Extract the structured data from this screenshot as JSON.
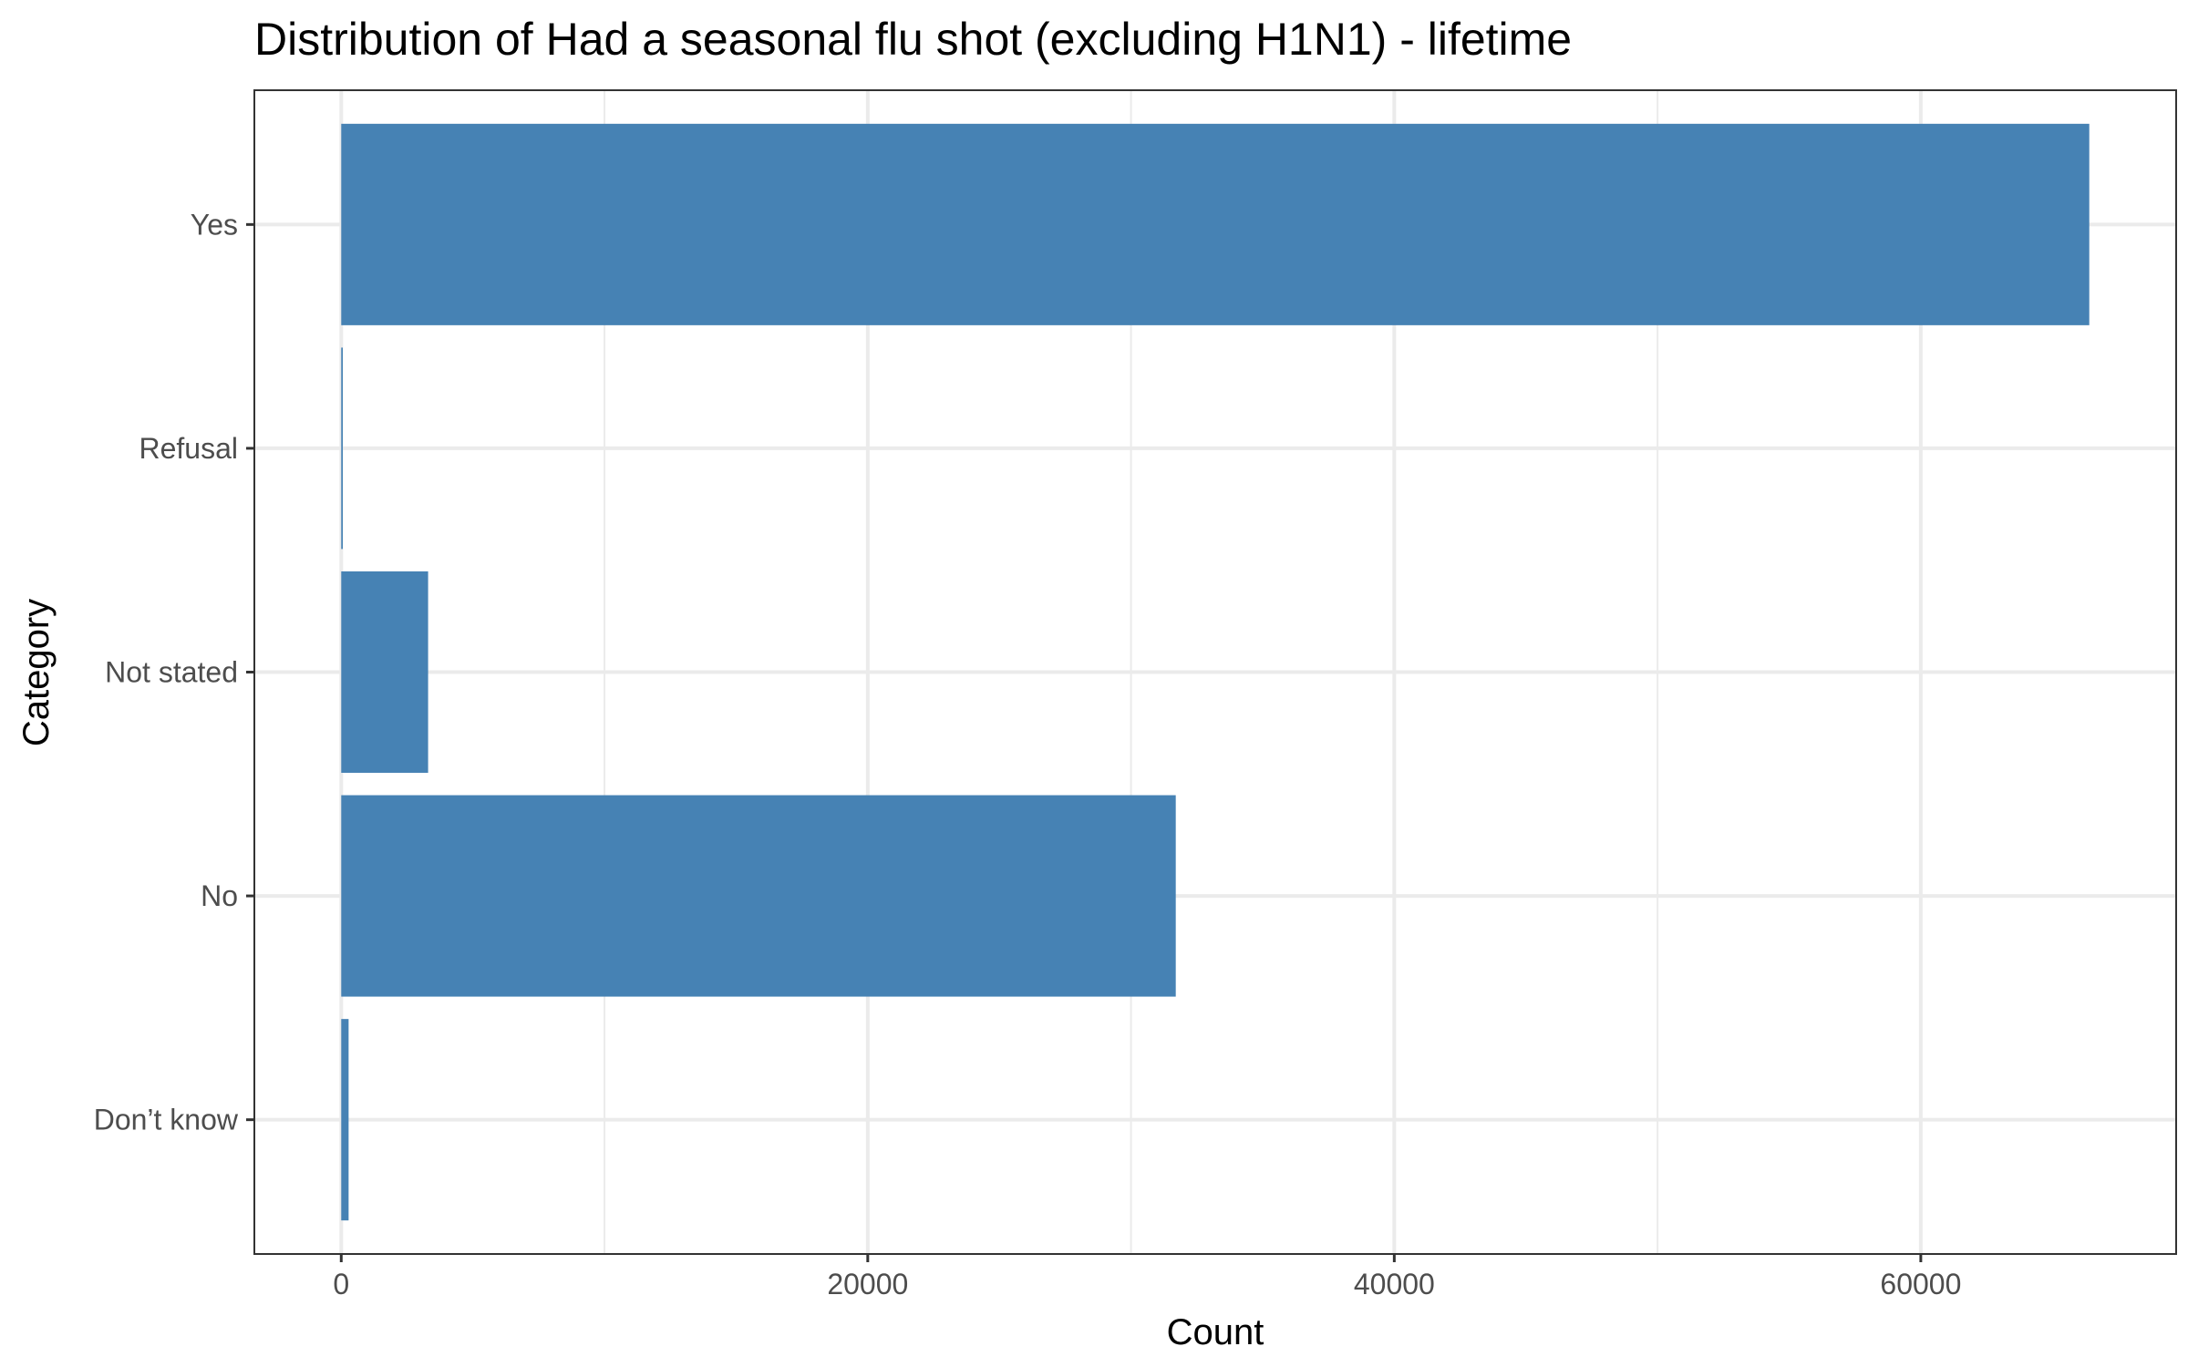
{
  "chart_data": {
    "type": "bar",
    "orientation": "horizontal",
    "title": "Distribution of Had a seasonal flu shot (excluding H1N1) - lifetime",
    "xlabel": "Count",
    "ylabel": "Category",
    "categories": [
      "Yes",
      "Refusal",
      "Not stated",
      "No",
      "Don’t know"
    ],
    "values": [
      66400,
      60,
      3300,
      31700,
      280
    ],
    "xlim": [
      -3300,
      69700
    ],
    "x_ticks": [
      0,
      20000,
      40000,
      60000
    ],
    "x_tick_labels": [
      "0",
      "20000",
      "40000",
      "60000"
    ],
    "grid": true,
    "bar_color": "#4682B4",
    "panel_border_color": "#333333",
    "grid_color": "#ebebeb"
  }
}
